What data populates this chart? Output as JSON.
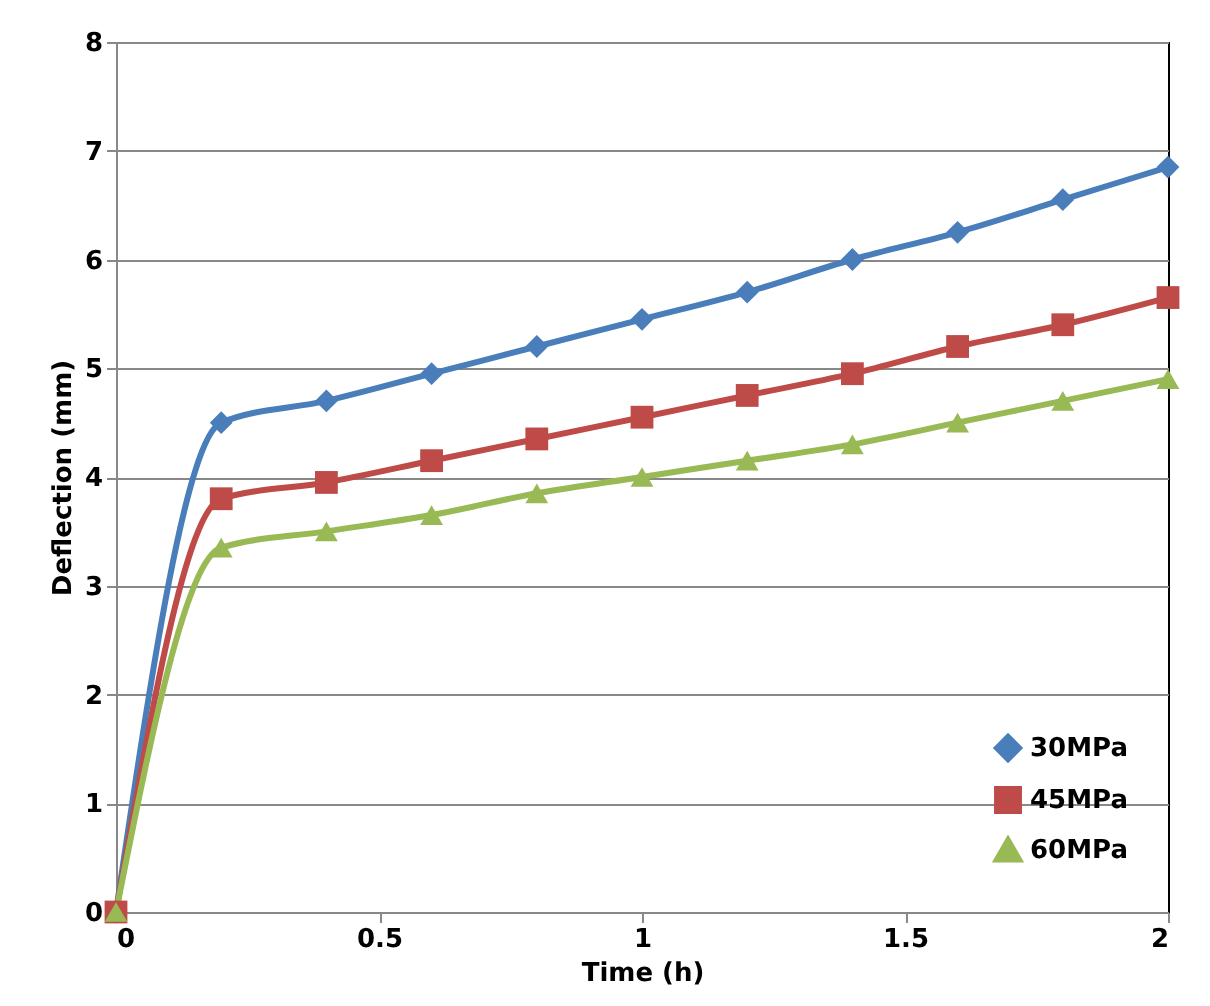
{
  "chart_data": {
    "type": "line",
    "xlabel": "Time  (h)",
    "ylabel": "Deflection (mm)",
    "x": [
      0,
      0.2,
      0.4,
      0.6,
      0.8,
      1.0,
      1.2,
      1.4,
      1.6,
      1.8,
      2.0
    ],
    "series": [
      {
        "name": "30MPa",
        "color": "#4a7ebb",
        "marker": "diamond",
        "values": [
          0,
          4.5,
          4.7,
          4.95,
          5.2,
          5.45,
          5.7,
          6.0,
          6.25,
          6.55,
          6.85
        ]
      },
      {
        "name": "45MPa",
        "color": "#be4b48",
        "marker": "square",
        "values": [
          0,
          3.8,
          3.95,
          4.15,
          4.35,
          4.55,
          4.75,
          4.95,
          5.2,
          5.4,
          5.65
        ]
      },
      {
        "name": "60MPa",
        "color": "#98b954",
        "marker": "triangle",
        "values": [
          0,
          3.35,
          3.5,
          3.65,
          3.85,
          4.0,
          4.15,
          4.3,
          4.5,
          4.7,
          4.9
        ]
      }
    ],
    "xlim": [
      0,
      2
    ],
    "xticks": [
      0,
      0.5,
      1,
      1.5,
      2
    ],
    "ylim": [
      0,
      8
    ],
    "yticks": [
      0,
      1,
      2,
      3,
      4,
      5,
      6,
      7,
      8
    ],
    "grid": "y",
    "legend": "bottom right",
    "line_style": "solid"
  }
}
